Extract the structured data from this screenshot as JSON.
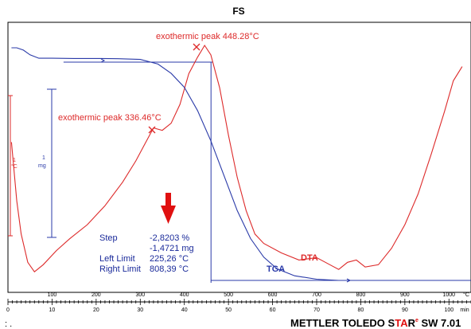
{
  "chart_data": {
    "type": "line",
    "title": "FS",
    "x_unit": "°C",
    "x_unit2": "min",
    "x_ticks": [
      100,
      200,
      300,
      400,
      500,
      600,
      700,
      800,
      900,
      1000
    ],
    "x_ticks_min": [
      0,
      10,
      20,
      30,
      40,
      50,
      60,
      70,
      80,
      90,
      100
    ],
    "xlim_C": [
      0,
      1050
    ],
    "xlim_min": [
      0,
      105
    ],
    "series": [
      {
        "name": "DTA",
        "color": "#dd2a2a",
        "points_min": [
          [
            0.8,
            0.41
          ],
          [
            2.0,
            0.66
          ],
          [
            3.0,
            0.8
          ],
          [
            4.5,
            0.92
          ],
          [
            6,
            0.96
          ],
          [
            8,
            0.93
          ],
          [
            11,
            0.87
          ],
          [
            14,
            0.82
          ],
          [
            18,
            0.76
          ],
          [
            22,
            0.68
          ],
          [
            26,
            0.58
          ],
          [
            29,
            0.49
          ],
          [
            31,
            0.42
          ],
          [
            33,
            0.35
          ],
          [
            35,
            0.36
          ],
          [
            37,
            0.33
          ],
          [
            39,
            0.25
          ],
          [
            41,
            0.12
          ],
          [
            43,
            0.05
          ],
          [
            44.6,
            0.0
          ],
          [
            46,
            0.04
          ],
          [
            48,
            0.18
          ],
          [
            50,
            0.38
          ],
          [
            52,
            0.56
          ],
          [
            54,
            0.7
          ],
          [
            56,
            0.8
          ],
          [
            58,
            0.84
          ],
          [
            62,
            0.88
          ],
          [
            66,
            0.91
          ],
          [
            70,
            0.9
          ],
          [
            73,
            0.93
          ],
          [
            75,
            0.95
          ],
          [
            77,
            0.92
          ],
          [
            79,
            0.91
          ],
          [
            81,
            0.94
          ],
          [
            84,
            0.93
          ],
          [
            87,
            0.86
          ],
          [
            90,
            0.76
          ],
          [
            93,
            0.63
          ],
          [
            96,
            0.46
          ],
          [
            99,
            0.28
          ],
          [
            101,
            0.15
          ],
          [
            103,
            0.09
          ]
        ]
      },
      {
        "name": "TGA",
        "color": "#2a3aa8",
        "points_min": [
          [
            0.8,
            0.0
          ],
          [
            2,
            0.0
          ],
          [
            3.5,
            0.01
          ],
          [
            5,
            0.03
          ],
          [
            7,
            0.045
          ],
          [
            10,
            0.045
          ],
          [
            15,
            0.046
          ],
          [
            20,
            0.046
          ],
          [
            25,
            0.047
          ],
          [
            30,
            0.05
          ],
          [
            34,
            0.07
          ],
          [
            37,
            0.11
          ],
          [
            40,
            0.17
          ],
          [
            43,
            0.27
          ],
          [
            46,
            0.4
          ],
          [
            49,
            0.55
          ],
          [
            52,
            0.7
          ],
          [
            55,
            0.82
          ],
          [
            58,
            0.9
          ],
          [
            61,
            0.95
          ],
          [
            65,
            0.98
          ],
          [
            70,
            0.995
          ],
          [
            75,
            1.0
          ],
          [
            85,
            1.0
          ],
          [
            95,
            1.0
          ],
          [
            104,
            1.0
          ]
        ]
      }
    ],
    "peaks": [
      {
        "label": "exothermic peak 336.46°C",
        "value_C": 336.46
      },
      {
        "label": "exothermic peak 448.28°C",
        "value_C": 448.28
      }
    ],
    "scale_markers": {
      "dta_top": "1",
      "dta_unit": "°C",
      "tga_top": "1",
      "tga_unit": "mg"
    },
    "step_info": {
      "title": "Step",
      "percent": "-2,8203 %",
      "mass": "-1,4721 mg",
      "left_label": "Left Limit",
      "left_value": "225,26 °C",
      "right_label": "Right Limit",
      "right_value": "808,39 °C"
    },
    "series_labels": {
      "dta": "DTA",
      "tga": "TGA"
    },
    "colors": {
      "dta": "#dd2a2a",
      "tga": "#2a3aa8",
      "arrow": "#e01010"
    }
  },
  "footer": {
    "left_marker": ": .",
    "brand_left": "METTLER TOLEDO S",
    "brand_ta": "TA",
    "brand_r": "R",
    "brand_sup": "e",
    "brand_right": " SW 7.01"
  }
}
